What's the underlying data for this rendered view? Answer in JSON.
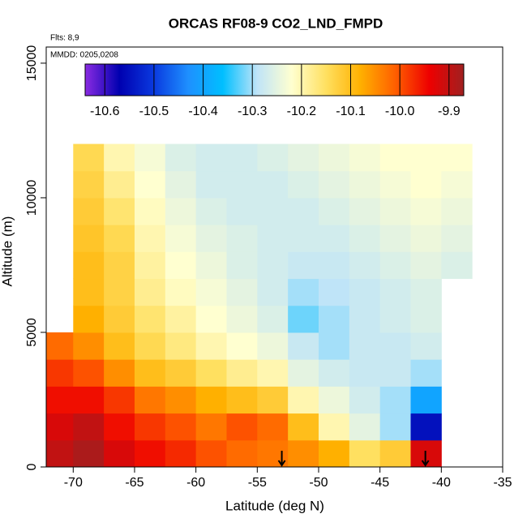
{
  "chart_data": {
    "type": "heatmap",
    "title": "ORCAS RF08-9 CO2_LND_FMPD",
    "annotations": [
      "Flts: 8,9",
      "MMDD: 0205,0208"
    ],
    "x_label": "Latitude (deg N)",
    "y_label": "Altitude (m)",
    "xlim": [
      -72.2,
      -35
    ],
    "ylim": [
      0,
      15600
    ],
    "xticks": [
      -70,
      -65,
      -60,
      -55,
      -50,
      -45,
      -40,
      -35
    ],
    "yticks": [
      0,
      5000,
      10000,
      15000
    ],
    "x_edges": [
      -72.5,
      -70,
      -67.5,
      -65,
      -62.5,
      -60,
      -57.5,
      -55,
      -52.5,
      -50,
      -47.5,
      -45,
      -42.5,
      -40,
      -37.5
    ],
    "y_edges": [
      0,
      1000,
      2000,
      3000,
      4000,
      5000,
      6000,
      7000,
      8000,
      9000,
      10000,
      11000,
      12000
    ],
    "z": [
      [
        -9.9,
        -9.88,
        -9.92,
        -9.95,
        -9.97,
        -10.0,
        -10.02,
        -10.03,
        -10.05,
        -10.08,
        -10.15,
        -10.12,
        -9.92,
        null
      ],
      [
        -9.92,
        -9.9,
        -9.95,
        -9.98,
        -10.0,
        -10.03,
        -10.0,
        -10.02,
        -10.1,
        -10.2,
        -10.25,
        -10.3,
        -10.55,
        null
      ],
      [
        -9.95,
        -9.95,
        -9.98,
        -10.03,
        -10.05,
        -10.08,
        -10.1,
        -10.12,
        -10.2,
        -10.24,
        -10.27,
        -10.3,
        -10.4,
        null
      ],
      [
        -9.98,
        -10.0,
        -10.05,
        -10.1,
        -10.12,
        -10.15,
        -10.18,
        -10.2,
        -10.25,
        -10.27,
        -10.28,
        -10.28,
        -10.3,
        null
      ],
      [
        -10.02,
        -10.05,
        -10.1,
        -10.14,
        -10.17,
        -10.2,
        -10.22,
        -10.24,
        -10.28,
        -10.3,
        -10.28,
        -10.28,
        -10.27,
        null
      ],
      [
        null,
        -10.08,
        -10.12,
        -10.16,
        -10.19,
        -10.22,
        -10.24,
        -10.26,
        -10.32,
        -10.3,
        -10.28,
        -10.27,
        -10.26,
        null
      ],
      [
        null,
        -10.1,
        -10.13,
        -10.18,
        -10.21,
        -10.23,
        -10.25,
        -10.27,
        -10.3,
        -10.29,
        -10.28,
        -10.27,
        -10.26,
        null
      ],
      [
        null,
        -10.1,
        -10.13,
        -10.19,
        -10.22,
        -10.24,
        -10.26,
        -10.27,
        -10.28,
        -10.28,
        -10.27,
        -10.26,
        -10.25,
        -10.26
      ],
      [
        null,
        -10.11,
        -10.14,
        -10.2,
        -10.23,
        -10.25,
        -10.26,
        -10.27,
        -10.27,
        -10.27,
        -10.26,
        -10.25,
        -10.24,
        -10.25
      ],
      [
        null,
        -10.12,
        -10.16,
        -10.21,
        -10.24,
        -10.26,
        -10.27,
        -10.27,
        -10.27,
        -10.26,
        -10.25,
        -10.24,
        -10.23,
        -10.24
      ],
      [
        null,
        -10.13,
        -10.18,
        -10.22,
        -10.25,
        -10.27,
        -10.27,
        -10.27,
        -10.26,
        -10.25,
        -10.24,
        -10.23,
        -10.22,
        -10.23
      ],
      [
        null,
        -10.14,
        -10.2,
        -10.23,
        -10.26,
        -10.27,
        -10.27,
        -10.26,
        -10.25,
        -10.24,
        -10.23,
        -10.22,
        -10.22,
        -10.22
      ]
    ],
    "colorbar": {
      "zlim": [
        -10.64,
        -9.87
      ],
      "zticks": [
        -10.6,
        -10.5,
        -10.4,
        -10.3,
        -10.2,
        -10.1,
        {
          "value": -10,
          "label": "-10.0"
        },
        -9.9
      ],
      "colors": [
        "#8a2be2",
        "#0000b0",
        "#0a3adf",
        "#1e90ff",
        "#00bfff",
        "#bfe4f8",
        "#ffffd0",
        "#ffe060",
        "#ffb000",
        "#ff6000",
        "#ee0000",
        "#a02020"
      ]
    },
    "markers": {
      "x": [
        -53,
        -41.3
      ],
      "color": "#000000"
    }
  }
}
